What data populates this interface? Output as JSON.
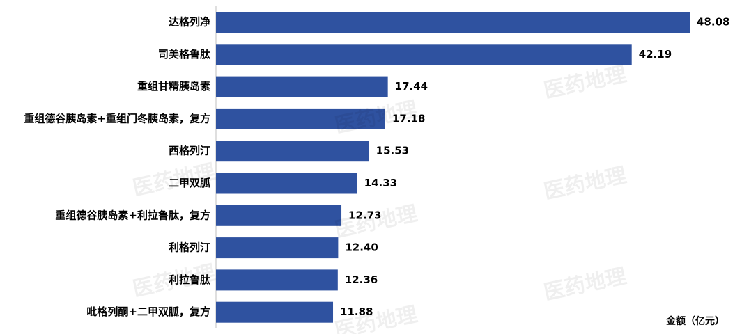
{
  "chart_data": {
    "type": "bar",
    "orientation": "horizontal",
    "categories": [
      "达格列净",
      "司美格鲁肽",
      "重组甘精胰岛素",
      "重组德谷胰岛素+重组门冬胰岛素，复方",
      "西格列汀",
      "二甲双胍",
      "重组德谷胰岛素+利拉鲁肽，复方",
      "利格列汀",
      "利拉鲁肽",
      "吡格列酮+二甲双胍，复方"
    ],
    "values": [
      48.08,
      42.19,
      17.44,
      17.18,
      15.53,
      14.33,
      12.73,
      12.4,
      12.36,
      11.88
    ],
    "value_labels": [
      "48.08",
      "42.19",
      "17.44",
      "17.18",
      "15.53",
      "14.33",
      "12.73",
      "12.40",
      "12.36",
      "11.88"
    ],
    "color": "#2f52a0",
    "axis_label": "金额（亿元）",
    "watermark": "医药地理"
  }
}
